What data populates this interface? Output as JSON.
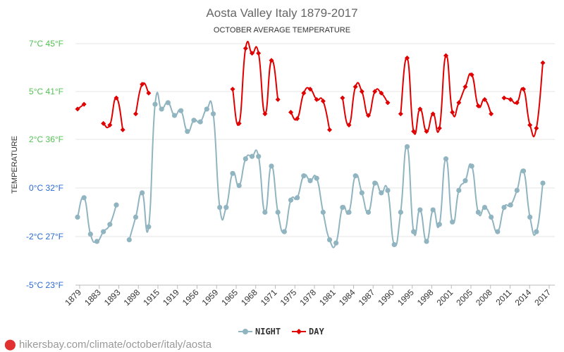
{
  "chart_data": {
    "type": "line",
    "title": "Aosta Valley Italy 1879-2017",
    "subtitle": "OCTOBER AVERAGE TEMPERATURE",
    "ylabel": "TEMPERATURE",
    "ylim": [
      -5,
      7
    ],
    "yticks": [
      {
        "value": 7,
        "label": "7°C 45°F",
        "color": "#53c253"
      },
      {
        "value": 5,
        "label": "5°C 41°F",
        "color": "#53c253"
      },
      {
        "value": 2,
        "label": "2°C 36°F",
        "color": "#53c253"
      },
      {
        "value": 0,
        "label": "0°C 32°F",
        "color": "#2a6ad6"
      },
      {
        "value": -2,
        "label": "-2°C 27°F",
        "color": "#2a6ad6"
      },
      {
        "value": -5,
        "label": "-5°C 23°F",
        "color": "#2a6ad6"
      }
    ],
    "xtick_labels": [
      "1879",
      "1883",
      "1893",
      "1898",
      "1915",
      "1919",
      "1956",
      "1959",
      "1965",
      "1968",
      "1971",
      "1975",
      "1978",
      "1981",
      "1984",
      "1987",
      "1990",
      "1995",
      "1998",
      "2001",
      "2005",
      "2008",
      "2011",
      "2014",
      "2017"
    ],
    "grid": true,
    "legend_position": "bottom",
    "series": [
      {
        "name": "NIGHT",
        "color": "#90b4c0",
        "marker": "circle",
        "values": [
          -1.2,
          -0.4,
          -1.9,
          -2.3,
          -1.8,
          -1.5,
          -0.7,
          null,
          -2.2,
          -1.2,
          -0.2,
          -1.6,
          4.2,
          3.9,
          4.3,
          3.5,
          3.8,
          2.5,
          3.2,
          3.1,
          3.9,
          3.6,
          -0.8,
          -0.8,
          0.6,
          0.1,
          1.2,
          1.3,
          1.3,
          -1.0,
          0.9,
          -1.0,
          -1.8,
          -0.5,
          -0.4,
          0.5,
          0.3,
          0.4,
          -1.0,
          -2.2,
          -2.4,
          -0.8,
          -1.0,
          0.5,
          -0.2,
          -1.0,
          0.2,
          -0.2,
          -0.1,
          -2.5,
          -1.0,
          1.7,
          -1.8,
          -0.9,
          -2.3,
          -0.9,
          -1.5,
          1.2,
          -1.4,
          -0.1,
          0.3,
          0.9,
          -1.0,
          -0.8,
          -1.2,
          -1.8,
          -0.8,
          -0.7,
          -0.1,
          0.7,
          -1.2,
          -1.8,
          0.2
        ]
      },
      {
        "name": "DAY",
        "color": "#e00000",
        "marker": "diamond",
        "values": [
          3.9,
          4.2,
          null,
          null,
          3.0,
          2.9,
          4.6,
          2.6,
          null,
          3.6,
          5.3,
          4.9,
          null,
          null,
          null,
          null,
          null,
          null,
          null,
          null,
          null,
          null,
          null,
          null,
          5.1,
          3.0,
          6.8,
          6.6,
          6.6,
          3.6,
          6.3,
          4.5,
          null,
          3.7,
          3.3,
          4.9,
          5.1,
          4.5,
          4.4,
          2.6,
          null,
          4.6,
          2.9,
          5.2,
          5.0,
          3.5,
          5.0,
          4.9,
          4.3,
          null,
          3.6,
          6.4,
          2.5,
          3.9,
          2.5,
          3.6,
          2.7,
          6.5,
          3.7,
          4.3,
          5.2,
          5.7,
          4.1,
          4.5,
          3.6,
          null,
          4.6,
          4.5,
          4.3,
          5.1,
          2.9,
          2.7,
          6.2
        ]
      }
    ]
  },
  "legend": {
    "night_label": "NIGHT",
    "day_label": "DAY"
  },
  "watermark": {
    "text": "hikersbay.com/climate/october/italy/aosta"
  }
}
